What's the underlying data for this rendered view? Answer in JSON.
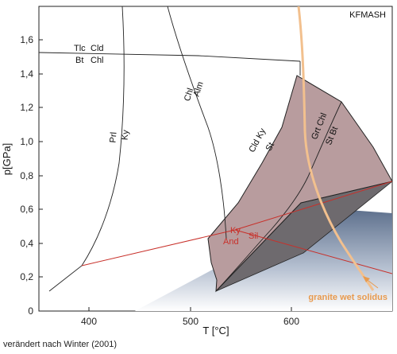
{
  "system_label": "KFMASH",
  "x_axis": {
    "title": "T [°C]",
    "ticks": [
      "400",
      "500",
      "600"
    ]
  },
  "y_axis": {
    "title": "p[GPa]",
    "ticks": [
      "0",
      "0,2",
      "0,4",
      "0,6",
      "0,8",
      "1,0",
      "1,2",
      "1,4",
      "1,6"
    ]
  },
  "reaction_labels": {
    "tlc": "Tlc",
    "cld_upper": "Cld",
    "bt": "Bt",
    "chl_left": "Chl",
    "prl": "Prl",
    "ky_left": "Ky",
    "alm": "Alm",
    "chl_mid": "Chl",
    "cld_ky": "Cld  Ky",
    "st_mid": "St",
    "grt_chl": "Grt  Chl",
    "st_bt": "St  Bt"
  },
  "aluminosilicate_labels": {
    "ky": "Ky",
    "and": "And",
    "sil": "Sil"
  },
  "solidus_label": "granite wet solidus",
  "source_note": "verändert nach Winter (2001)",
  "colors": {
    "field_fill": "#b89c9e",
    "solidus": "#f2c08e",
    "solidus_label": "#e89a4e",
    "triple_point_lines": "#c8302a",
    "dark_wedge": "#6e6a6e",
    "blue_gradient_top": "#5c6f8c"
  }
}
